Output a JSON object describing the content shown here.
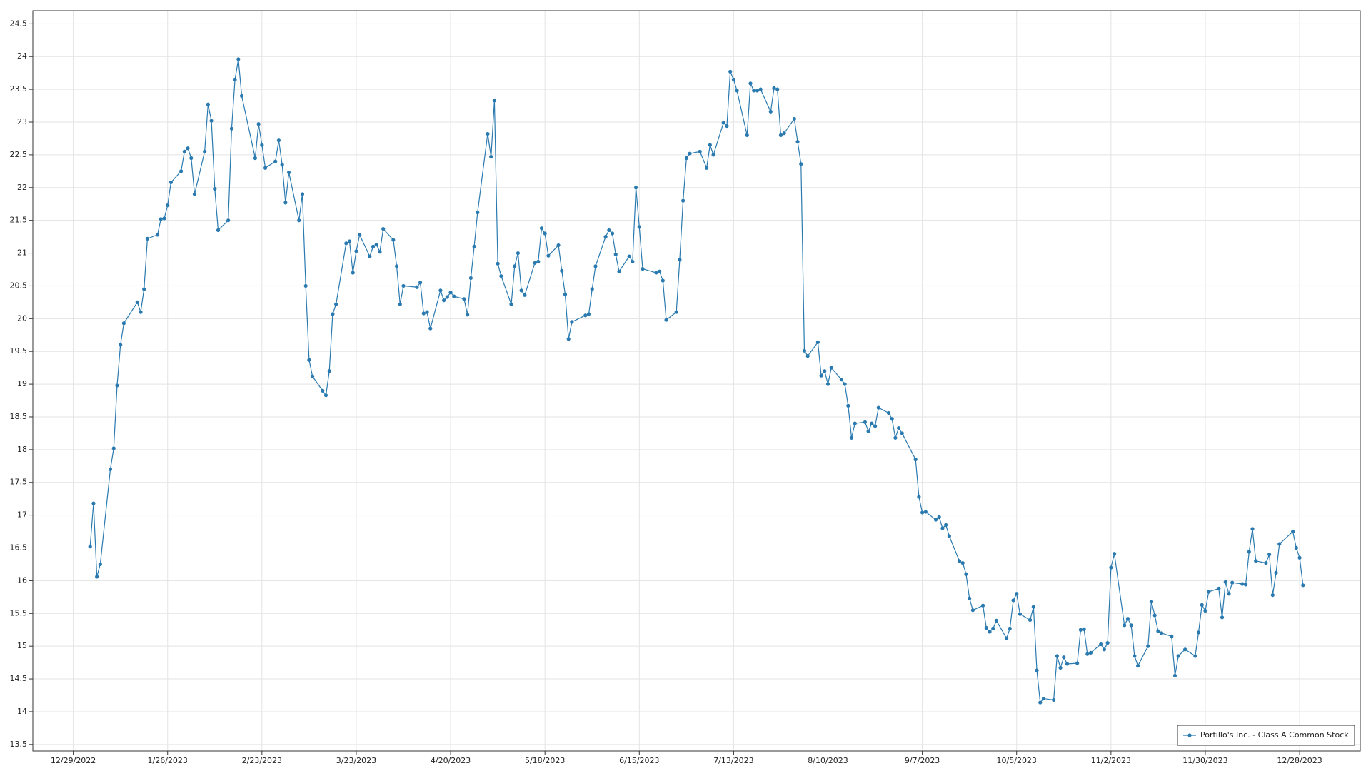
{
  "chart_data": {
    "type": "line",
    "series": [
      {
        "name": "Portillo's Inc. - Class A Common Stock",
        "color": "#2a7ab0",
        "values": [
          16.52,
          17.18,
          16.06,
          16.25,
          17.7,
          18.02,
          18.98,
          19.6,
          19.93,
          20.25,
          20.1,
          20.45,
          21.22,
          21.28,
          21.52,
          21.53,
          21.73,
          22.08,
          22.25,
          22.55,
          22.6,
          22.45,
          21.9,
          22.55,
          23.27,
          23.02,
          21.98,
          21.35,
          21.5,
          22.9,
          23.65,
          23.96,
          23.4,
          22.45,
          22.97,
          22.65,
          22.3,
          22.4,
          22.72,
          22.35,
          21.77,
          22.23,
          21.5,
          21.9,
          20.5,
          19.37,
          19.12,
          18.9,
          18.83,
          19.2,
          20.07,
          20.22,
          21.15,
          21.18,
          20.7,
          21.03,
          21.28,
          20.95,
          21.1,
          21.13,
          21.02,
          21.37,
          21.2,
          20.8,
          20.22,
          20.5,
          20.48,
          20.55,
          20.08,
          20.1,
          19.85,
          20.43,
          20.28,
          20.33,
          20.4,
          20.34,
          20.3,
          20.06,
          20.62,
          21.1,
          21.62,
          22.82,
          22.47,
          23.33,
          20.84,
          20.65,
          20.22,
          20.8,
          21.0,
          20.43,
          20.36,
          20.85,
          20.87,
          21.38,
          21.3,
          20.96,
          21.12,
          20.73,
          20.37,
          19.69,
          19.95,
          20.05,
          20.07,
          20.45,
          20.8,
          21.25,
          21.35,
          21.3,
          20.98,
          20.72,
          20.95,
          20.87,
          22.0,
          21.4,
          20.76,
          20.7,
          20.72,
          20.58,
          19.98,
          20.1,
          20.9,
          21.8,
          22.45,
          22.52,
          22.55,
          22.3,
          22.65,
          22.5,
          22.99,
          22.94,
          23.77,
          23.65,
          23.48,
          22.8,
          23.59,
          23.48,
          23.48,
          23.5,
          23.16,
          23.52,
          23.5,
          22.8,
          22.83,
          23.05,
          22.7,
          22.36,
          19.51,
          19.43,
          19.64,
          19.13,
          19.2,
          19.0,
          19.25,
          19.07,
          19.0,
          18.67,
          18.18,
          18.4,
          18.42,
          18.28,
          18.4,
          18.36,
          18.64,
          18.56,
          18.47,
          18.18,
          18.33,
          18.25,
          17.85,
          17.28,
          17.04,
          17.05,
          16.93,
          16.97,
          16.8,
          16.85,
          16.68,
          16.3,
          16.27,
          16.1,
          15.73,
          15.55,
          15.62,
          15.28,
          15.22,
          15.27,
          15.39,
          15.12,
          15.27,
          15.7,
          15.8,
          15.49,
          15.4,
          15.6,
          14.63,
          14.14,
          14.2,
          14.18,
          14.85,
          14.67,
          14.83,
          14.73,
          14.74,
          15.25,
          15.26,
          14.88,
          14.9,
          15.03,
          14.95,
          15.05,
          16.2,
          16.41,
          15.32,
          15.42,
          15.32,
          14.85,
          14.7,
          15.0,
          15.68,
          15.47,
          15.23,
          15.2,
          15.15,
          14.55,
          14.85,
          14.95,
          14.85,
          15.21,
          15.63,
          15.54,
          15.83,
          15.88,
          15.44,
          15.98,
          15.8,
          15.97,
          15.95,
          15.94,
          16.44,
          16.79,
          16.3,
          16.27,
          16.4,
          15.78,
          16.12,
          16.56,
          16.75,
          16.5,
          16.35,
          15.93
        ]
      }
    ],
    "x": [
      "1/3/2023",
      "1/4/2023",
      "1/5/2023",
      "1/6/2023",
      "1/9/2023",
      "1/10/2023",
      "1/11/2023",
      "1/12/2023",
      "1/13/2023",
      "1/17/2023",
      "1/18/2023",
      "1/19/2023",
      "1/20/2023",
      "1/23/2023",
      "1/24/2023",
      "1/25/2023",
      "1/26/2023",
      "1/27/2023",
      "1/30/2023",
      "1/31/2023",
      "2/1/2023",
      "2/2/2023",
      "2/3/2023",
      "2/6/2023",
      "2/7/2023",
      "2/8/2023",
      "2/9/2023",
      "2/10/2023",
      "2/13/2023",
      "2/14/2023",
      "2/15/2023",
      "2/16/2023",
      "2/17/2023",
      "2/21/2023",
      "2/22/2023",
      "2/23/2023",
      "2/24/2023",
      "2/27/2023",
      "2/28/2023",
      "3/1/2023",
      "3/2/2023",
      "3/3/2023",
      "3/6/2023",
      "3/7/2023",
      "3/8/2023",
      "3/9/2023",
      "3/10/2023",
      "3/13/2023",
      "3/14/2023",
      "3/15/2023",
      "3/16/2023",
      "3/17/2023",
      "3/20/2023",
      "3/21/2023",
      "3/22/2023",
      "3/23/2023",
      "3/24/2023",
      "3/27/2023",
      "3/28/2023",
      "3/29/2023",
      "3/30/2023",
      "3/31/2023",
      "4/3/2023",
      "4/4/2023",
      "4/5/2023",
      "4/6/2023",
      "4/10/2023",
      "4/11/2023",
      "4/12/2023",
      "4/13/2023",
      "4/14/2023",
      "4/17/2023",
      "4/18/2023",
      "4/19/2023",
      "4/20/2023",
      "4/21/2023",
      "4/24/2023",
      "4/25/2023",
      "4/26/2023",
      "4/27/2023",
      "4/28/2023",
      "5/1/2023",
      "5/2/2023",
      "5/3/2023",
      "5/4/2023",
      "5/5/2023",
      "5/8/2023",
      "5/9/2023",
      "5/10/2023",
      "5/11/2023",
      "5/12/2023",
      "5/15/2023",
      "5/16/2023",
      "5/17/2023",
      "5/18/2023",
      "5/19/2023",
      "5/22/2023",
      "5/23/2023",
      "5/24/2023",
      "5/25/2023",
      "5/26/2023",
      "5/30/2023",
      "5/31/2023",
      "6/1/2023",
      "6/2/2023",
      "6/5/2023",
      "6/6/2023",
      "6/7/2023",
      "6/8/2023",
      "6/9/2023",
      "6/12/2023",
      "6/13/2023",
      "6/14/2023",
      "6/15/2023",
      "6/16/2023",
      "6/20/2023",
      "6/21/2023",
      "6/22/2023",
      "6/23/2023",
      "6/26/2023",
      "6/27/2023",
      "6/28/2023",
      "6/29/2023",
      "6/30/2023",
      "7/3/2023",
      "7/5/2023",
      "7/6/2023",
      "7/7/2023",
      "7/10/2023",
      "7/11/2023",
      "7/12/2023",
      "7/13/2023",
      "7/14/2023",
      "7/17/2023",
      "7/18/2023",
      "7/19/2023",
      "7/20/2023",
      "7/21/2023",
      "7/24/2023",
      "7/25/2023",
      "7/26/2023",
      "7/27/2023",
      "7/28/2023",
      "7/31/2023",
      "8/1/2023",
      "8/2/2023",
      "8/3/2023",
      "8/4/2023",
      "8/7/2023",
      "8/8/2023",
      "8/9/2023",
      "8/10/2023",
      "8/11/2023",
      "8/14/2023",
      "8/15/2023",
      "8/16/2023",
      "8/17/2023",
      "8/18/2023",
      "8/21/2023",
      "8/22/2023",
      "8/23/2023",
      "8/24/2023",
      "8/25/2023",
      "8/28/2023",
      "8/29/2023",
      "8/30/2023",
      "8/31/2023",
      "9/1/2023",
      "9/5/2023",
      "9/6/2023",
      "9/7/2023",
      "9/8/2023",
      "9/11/2023",
      "9/12/2023",
      "9/13/2023",
      "9/14/2023",
      "9/15/2023",
      "9/18/2023",
      "9/19/2023",
      "9/20/2023",
      "9/21/2023",
      "9/22/2023",
      "9/25/2023",
      "9/26/2023",
      "9/27/2023",
      "9/28/2023",
      "9/29/2023",
      "10/2/2023",
      "10/3/2023",
      "10/4/2023",
      "10/5/2023",
      "10/6/2023",
      "10/9/2023",
      "10/10/2023",
      "10/11/2023",
      "10/12/2023",
      "10/13/2023",
      "10/16/2023",
      "10/17/2023",
      "10/18/2023",
      "10/19/2023",
      "10/20/2023",
      "10/23/2023",
      "10/24/2023",
      "10/25/2023",
      "10/26/2023",
      "10/27/2023",
      "10/30/2023",
      "10/31/2023",
      "11/1/2023",
      "11/2/2023",
      "11/3/2023",
      "11/6/2023",
      "11/7/2023",
      "11/8/2023",
      "11/9/2023",
      "11/10/2023",
      "11/13/2023",
      "11/14/2023",
      "11/15/2023",
      "11/16/2023",
      "11/17/2023",
      "11/20/2023",
      "11/21/2023",
      "11/22/2023",
      "11/24/2023",
      "11/27/2023",
      "11/28/2023",
      "11/29/2023",
      "11/30/2023",
      "12/1/2023",
      "12/4/2023",
      "12/5/2023",
      "12/6/2023",
      "12/7/2023",
      "12/8/2023",
      "12/11/2023",
      "12/12/2023",
      "12/13/2023",
      "12/14/2023",
      "12/15/2023",
      "12/18/2023",
      "12/19/2023",
      "12/20/2023",
      "12/21/2023",
      "12/22/2023",
      "12/26/2023",
      "12/27/2023",
      "12/28/2023",
      "12/29/2023"
    ],
    "xlim": [
      "12/17/2022",
      "1/15/2024"
    ],
    "xticks": [
      "12/29/2022",
      "1/26/2023",
      "2/23/2023",
      "3/23/2023",
      "4/20/2023",
      "5/18/2023",
      "6/15/2023",
      "7/13/2023",
      "8/10/2023",
      "9/7/2023",
      "10/5/2023",
      "11/2/2023",
      "11/30/2023",
      "12/28/2023"
    ],
    "ylim": [
      13.4,
      24.7
    ],
    "yticks": [
      13.5,
      14,
      14.5,
      15,
      15.5,
      16,
      16.5,
      17,
      17.5,
      18,
      18.5,
      19,
      19.5,
      20,
      20.5,
      21,
      21.5,
      22,
      22.5,
      23,
      23.5,
      24,
      24.5
    ],
    "grid": true,
    "legend": "lower right"
  }
}
